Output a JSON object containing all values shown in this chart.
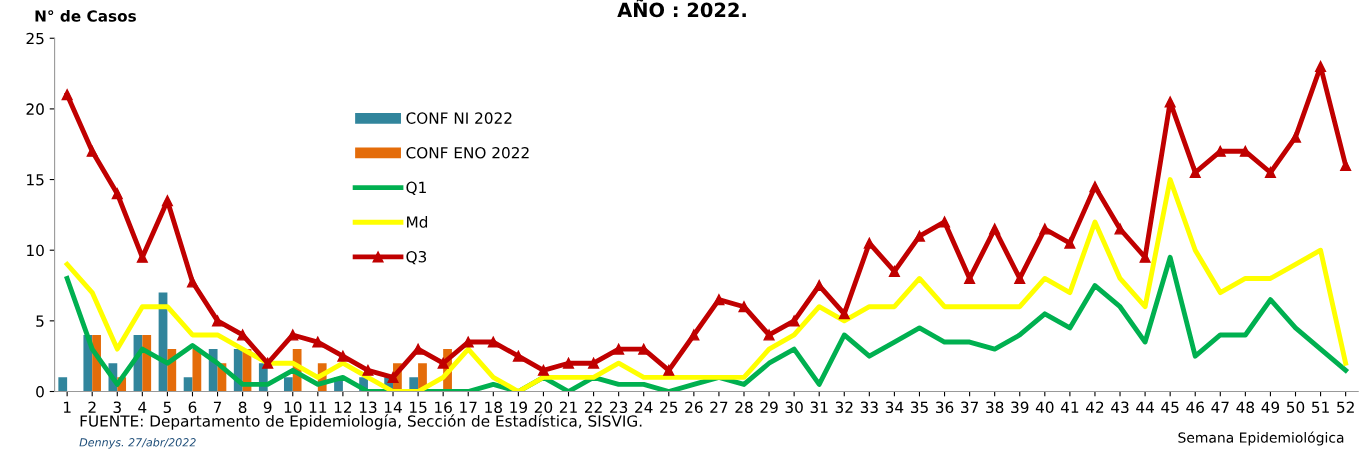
{
  "chart_data": {
    "type": "bar",
    "title": "AÑO : 2022.",
    "ylabel": "N° de Casos",
    "xlabel": "Semana Epidemiológica",
    "annotations": [
      "FUENTE: Departamento de Epidemiología, Sección de Estadística, SISVIG.",
      "Dennys. 27/abr/2022"
    ],
    "categories": [
      "1",
      "2",
      "3",
      "4",
      "5",
      "6",
      "7",
      "8",
      "9",
      "10",
      "11",
      "12",
      "13",
      "14",
      "15",
      "16",
      "17",
      "18",
      "19",
      "20",
      "21",
      "22",
      "23",
      "24",
      "25",
      "26",
      "27",
      "28",
      "29",
      "30",
      "31",
      "32",
      "33",
      "34",
      "35",
      "36",
      "37",
      "38",
      "39",
      "40",
      "41",
      "42",
      "43",
      "44",
      "45",
      "46",
      "47",
      "48",
      "49",
      "50",
      "51",
      "52"
    ],
    "ylim": [
      0,
      25
    ],
    "yticks": [
      0,
      5,
      10,
      15,
      20,
      25
    ],
    "grid": false,
    "legend": "top left",
    "series": [
      {
        "name": "CONF NI 2022",
        "color": "#31859c",
        "values": [
          1,
          4,
          2,
          4,
          7,
          1,
          3,
          3,
          2,
          1,
          0,
          1,
          1,
          1,
          1,
          0,
          0,
          0,
          0,
          0,
          0,
          0,
          0,
          0,
          0,
          0,
          0,
          0,
          0,
          0,
          0,
          0,
          0,
          0,
          0,
          0,
          0,
          0,
          0,
          0,
          0,
          0,
          0,
          0,
          0,
          0,
          0,
          0,
          0,
          0,
          0,
          0
        ]
      },
      {
        "name": "CONF ENO 2022",
        "color": "#e46c0a",
        "values": [
          0,
          4,
          1,
          4,
          3,
          3,
          2,
          3,
          0,
          3,
          2,
          0,
          0,
          2,
          2,
          3,
          0,
          0,
          0,
          0,
          0,
          0,
          0,
          0,
          0,
          0,
          0,
          0,
          0,
          0,
          0,
          0,
          0,
          0,
          0,
          0,
          0,
          0,
          0,
          0,
          0,
          0,
          0,
          0,
          0,
          0,
          0,
          0,
          0,
          0,
          0,
          0
        ]
      },
      {
        "name": "Q1",
        "type": "line",
        "color": "#00b050",
        "marker": "none",
        "values": [
          8,
          3,
          0.5,
          3,
          2,
          3.25,
          2,
          0.5,
          0.5,
          1.5,
          0.5,
          1,
          0,
          0,
          0,
          0,
          0,
          0.5,
          0,
          1,
          0,
          1,
          0.5,
          0.5,
          0,
          0.5,
          1,
          0.5,
          2,
          3,
          0.5,
          4,
          2.5,
          3.5,
          4.5,
          3.5,
          3.5,
          3,
          4,
          5.5,
          4.5,
          7.5,
          6,
          3.5,
          9.5,
          2.5,
          4,
          4,
          6.5,
          4.5,
          3,
          1.5
        ]
      },
      {
        "name": "Md",
        "type": "line",
        "color": "#ffff00",
        "marker": "none",
        "values": [
          9,
          7,
          3,
          6,
          6,
          4,
          4,
          3,
          2,
          2,
          1,
          2,
          1,
          0,
          0,
          1,
          3,
          1,
          0,
          1,
          1,
          1,
          2,
          1,
          1,
          1,
          1,
          1,
          3,
          4,
          6,
          5,
          6,
          6,
          8,
          6,
          6,
          6,
          6,
          8,
          7,
          12,
          8,
          6,
          15,
          10,
          7,
          8,
          8,
          9,
          10,
          2
        ]
      },
      {
        "name": "Q3",
        "type": "line",
        "color": "#c00000",
        "marker": "triangle",
        "values": [
          21,
          17,
          14,
          9.5,
          13.5,
          7.75,
          5,
          4,
          2,
          4,
          3.5,
          2.5,
          1.5,
          1,
          3,
          2,
          3.5,
          3.5,
          2.5,
          1.5,
          2,
          2,
          3,
          3,
          1.5,
          4,
          6.5,
          6,
          4,
          5,
          7.5,
          5.5,
          10.5,
          8.5,
          11,
          12,
          8,
          11.5,
          8,
          11.5,
          10.5,
          14.5,
          11.5,
          9.5,
          20.5,
          15.5,
          17,
          17,
          15.5,
          18,
          23,
          16
        ]
      }
    ]
  }
}
